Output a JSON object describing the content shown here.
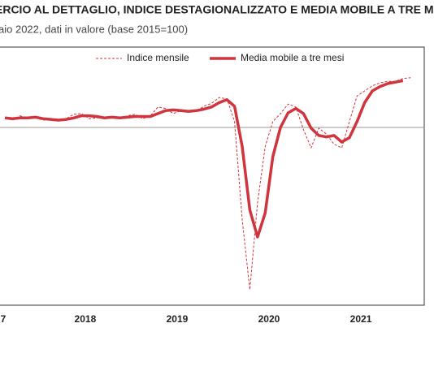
{
  "chart_data": {
    "type": "line",
    "title": "ERCIO AL DETTAGLIO, INDICE DESTAGIONALIZZATO E MEDIA MOBILE A TRE MESI",
    "subtitle": "aio 2022, dati in valore (base 2015=100)",
    "categories": [
      "7",
      null,
      null,
      null,
      null,
      null,
      null,
      null,
      null,
      null,
      null,
      "2018",
      null,
      null,
      null,
      null,
      null,
      null,
      null,
      null,
      null,
      null,
      null,
      "2019",
      null,
      null,
      null,
      null,
      null,
      null,
      null,
      null,
      null,
      null,
      null,
      "2020",
      null,
      null,
      null,
      null,
      null,
      null,
      null,
      null,
      null,
      null,
      null,
      "2021",
      null,
      null,
      null,
      null,
      null,
      null
    ],
    "series": [
      {
        "name": "Indice mensile",
        "color": "#d0343c",
        "style": "dashed",
        "values": [
          101.3,
          101.0,
          101.6,
          101.2,
          101.3,
          101.0,
          101.1,
          100.9,
          101.2,
          101.8,
          101.9,
          101.2,
          101.3,
          101.4,
          101.4,
          101.2,
          101.6,
          101.8,
          101.2,
          101.6,
          102.8,
          102.6,
          101.9,
          102.3,
          102.3,
          102.2,
          102.9,
          103.3,
          104.1,
          103.9,
          100.8,
          87.4,
          77.8,
          89.7,
          97.4,
          100.8,
          101.9,
          103.2,
          102.8,
          99.7,
          97.2,
          99.9,
          99.1,
          97.7,
          97.2,
          100.8,
          104.3,
          105.0,
          105.7,
          106.1,
          106.3,
          106.3,
          106.7,
          106.8
        ]
      },
      {
        "name": "Media mobile a tre mesi",
        "color": "#d0343c",
        "style": "solid",
        "values": [
          101.3,
          101.2,
          101.3,
          101.3,
          101.4,
          101.2,
          101.1,
          101.0,
          101.1,
          101.3,
          101.6,
          101.6,
          101.5,
          101.3,
          101.4,
          101.3,
          101.4,
          101.5,
          101.5,
          101.5,
          101.9,
          102.3,
          102.4,
          102.3,
          102.2,
          102.3,
          102.5,
          102.8,
          103.4,
          103.8,
          102.9,
          97.4,
          88.7,
          85.0,
          88.3,
          96.0,
          100.0,
          102.0,
          102.6,
          101.9,
          99.9,
          98.9,
          98.7,
          98.9,
          98.0,
          98.6,
          100.8,
          103.4,
          105.0,
          105.6,
          106.0,
          106.2,
          106.4,
          null
        ]
      }
    ],
    "ylim": [
      75,
      110
    ],
    "reference_line": 100,
    "legend": "top"
  }
}
